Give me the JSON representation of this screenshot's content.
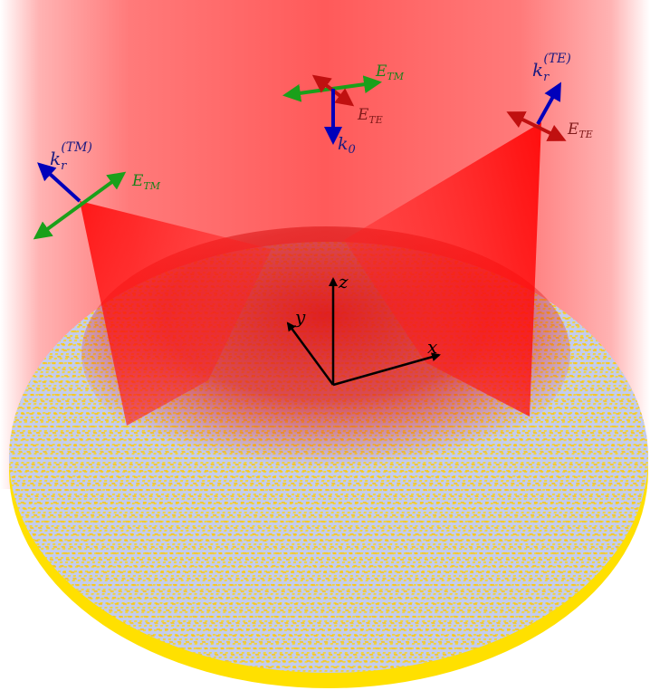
{
  "labels": {
    "incident_e_tm": "E",
    "incident_e_tm_sub": "TM",
    "incident_e_te": "E",
    "incident_e_te_sub": "TE",
    "incident_k": "k",
    "incident_k_sub": "0",
    "left_k": "k",
    "left_k_sub": "r",
    "left_k_sup": "(TM)",
    "left_e": "E",
    "left_e_sub": "TM",
    "right_k": "k",
    "right_k_sub": "r",
    "right_k_sup": "(TE)",
    "right_e": "E",
    "right_e_sub": "TE",
    "axis_x": "x",
    "axis_y": "y",
    "axis_z": "z"
  },
  "colors": {
    "beam": "#ff3b3b",
    "beam_core": "#ff0000",
    "disk_top": "#c3ccf0",
    "disk_side": "#ffe000",
    "pattern": "#ffd800",
    "pattern_hot": "#ff7a00",
    "k_arrow": "#0000bb",
    "e_tm_arrow": "#1aa01a",
    "e_te_arrow": "#c01010",
    "axis": "#000000",
    "label_blue": "#1a1a80",
    "label_green": "#1a801a",
    "label_red": "#801a1a"
  }
}
